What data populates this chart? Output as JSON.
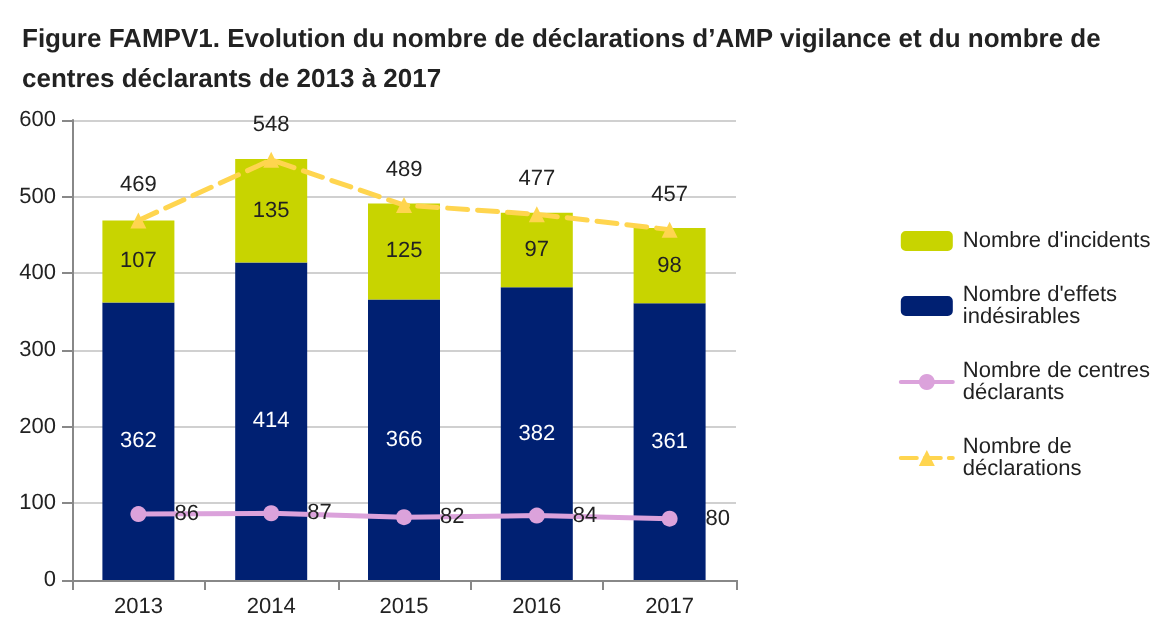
{
  "chart_data": {
    "type": "bar",
    "title": "Figure FAMPV1. Evolution du nombre de déclarations d’AMP vigilance et du nombre de centres déclarants de 2013 à 2017",
    "categories": [
      "2013",
      "2014",
      "2015",
      "2016",
      "2017"
    ],
    "stacked": true,
    "series": [
      {
        "name": "Nombre d'effets indésirables",
        "color": "#002072",
        "values": [
          362,
          414,
          366,
          382,
          361
        ]
      },
      {
        "name": "Nombre d'incidents",
        "color": "#c8d400",
        "values": [
          107,
          135,
          125,
          97,
          98
        ]
      },
      {
        "name": "Nombre de centres déclarants",
        "type": "line",
        "color": "#dba2db",
        "marker": "circle",
        "line_style": "solid",
        "values": [
          86,
          87,
          82,
          84,
          80
        ]
      },
      {
        "name": "Nombre de déclarations",
        "type": "line",
        "color": "#ffd54f",
        "marker": "triangle",
        "line_style": "dashed",
        "values": [
          469,
          548,
          489,
          477,
          457
        ]
      }
    ],
    "ylim": [
      0,
      600
    ],
    "yticks": [
      0,
      100,
      200,
      300,
      400,
      500,
      600
    ],
    "grid": "y",
    "legend": "right",
    "data_labels": true
  }
}
